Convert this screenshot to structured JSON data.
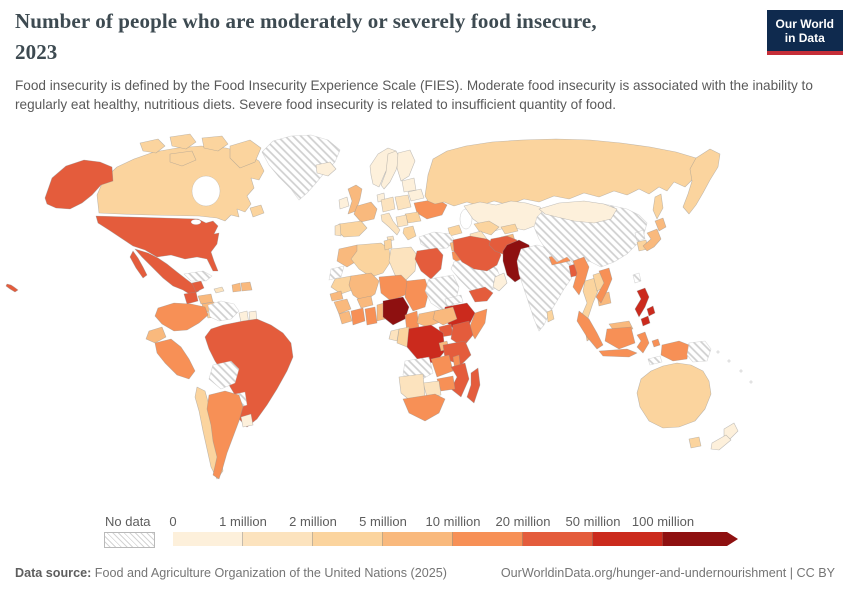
{
  "header": {
    "title_line1": "Number of people who are moderately or severely food insecure,",
    "title_line2": "2023",
    "subtitle": "Food insecurity is defined by the Food Insecurity Experience Scale (FIES). Moderate food insecurity is associated with the inability to regularly eat healthy, nutritious diets. Severe food insecurity is related to insufficient quantity of food."
  },
  "logo": {
    "line1": "Our World",
    "line2": "in Data",
    "background": "#0f2a4e",
    "accent": "#c52e38"
  },
  "legend": {
    "no_data_label": "No data",
    "tick_labels": [
      "0",
      "1 million",
      "2 million",
      "5 million",
      "10 million",
      "20 million",
      "50 million",
      "100 million"
    ]
  },
  "footer": {
    "source_label": "Data source:",
    "source_text": " Food and Agriculture Organization of the United Nations (2025)",
    "link_text": "OurWorldinData.org/hunger-and-undernourishment | CC BY"
  },
  "chart_data": {
    "type": "heatmap",
    "subtype": "choropleth-world-map",
    "title": "Number of people who are moderately or severely food insecure, 2023",
    "unit": "people",
    "bins": [
      {
        "label": "0–1 million",
        "color": "#FDF0DB"
      },
      {
        "label": "1–2 million",
        "color": "#FCE3BE"
      },
      {
        "label": "2–5 million",
        "color": "#FBD49E"
      },
      {
        "label": "5–10 million",
        "color": "#F9B97D"
      },
      {
        "label": "10–20 million",
        "color": "#F79056"
      },
      {
        "label": "20–50 million",
        "color": "#E45C3C"
      },
      {
        "label": "50–100 million",
        "color": "#CB2A1D"
      },
      {
        "label": "100 million+",
        "color": "#8E1010"
      }
    ],
    "no_data": {
      "label": "No data",
      "style": "diagonal-hatch"
    },
    "countries": {
      "United States": "20–50 million",
      "Canada": "2–5 million",
      "Greenland": "No data",
      "Mexico": "20–50 million",
      "Guatemala": "20–50 million",
      "Honduras": "5–10 million",
      "Nicaragua": "5–10 million",
      "Costa Rica": "2–5 million",
      "Panama": "5–10 million",
      "Cuba": "No data",
      "Jamaica": "1–2 million",
      "Haiti": "5–10 million",
      "Dominican Republic": "5–10 million",
      "Colombia": "10–20 million",
      "Venezuela": "No data",
      "Guyana": "0–1 million",
      "Suriname": "0–1 million",
      "Ecuador": "5–10 million",
      "Peru": "10–20 million",
      "Brazil": "20–50 million",
      "Bolivia": "No data",
      "Paraguay": "No data",
      "Chile": "2–5 million",
      "Argentina": "10–20 million",
      "Uruguay": "0–1 million",
      "Iceland": "0–1 million",
      "United Kingdom": "5–10 million",
      "Ireland": "0–1 million",
      "Norway": "0–1 million",
      "Sweden": "0–1 million",
      "Finland": "0–1 million",
      "Denmark": "0–1 million",
      "Germany": "1–2 million",
      "France": "5–10 million",
      "Spain": "2–5 million",
      "Portugal": "1–2 million",
      "Italy": "1–2 million",
      "Poland": "1–2 million",
      "Belarus": "0–1 million",
      "Lithuania": "0–1 million",
      "Ukraine": "10–20 million",
      "Romania": "2–5 million",
      "Serbia": "1–2 million",
      "Greece": "2–5 million",
      "Russia": "2–5 million",
      "Kazakhstan": "0–1 million",
      "Uzbekistan": "2–5 million",
      "Turkmenistan": "1–2 million",
      "Azerbaijan": "2–5 million",
      "Kyrgyzstan": "2–5 million",
      "Tajikistan": "5–10 million",
      "Turkey": "No data",
      "Syria": "5–10 million",
      "Iraq": "10–20 million",
      "Saudi Arabia": "No data",
      "Yemen": "20–50 million",
      "Oman": "0–1 million",
      "Iran": "20–50 million",
      "Afghanistan": "20–50 million",
      "Pakistan": "100 million+",
      "India": "No data",
      "Nepal": "10–20 million",
      "Bangladesh": "20–50 million",
      "Sri Lanka": "2–5 million",
      "China": "No data",
      "Mongolia": "0–1 million",
      "North Korea": "No data",
      "South Korea": "2–5 million",
      "Japan": "5–10 million",
      "Taiwan": "No data",
      "Myanmar": "10–20 million",
      "Thailand": "2–5 million",
      "Laos": "2–5 million",
      "Cambodia": "5–10 million",
      "Vietnam": "10–20 million",
      "Malaysia": "5–10 million",
      "Philippines": "50–100 million",
      "Indonesia": "10–20 million",
      "Papua New Guinea": "No data",
      "Timor-Leste": "No data",
      "Australia": "2–5 million",
      "New Zealand": "0–1 million",
      "Morocco": "5–10 million",
      "Western Sahara": "No data",
      "Algeria": "2–5 million",
      "Tunisia": "2–5 million",
      "Libya": "1–2 million",
      "Egypt": "20–50 million",
      "Mauritania": "2–5 million",
      "Senegal": "5–10 million",
      "Guinea": "5–10 million",
      "Sierra Leone": "5–10 million",
      "Mali": "5–10 million",
      "Burkina Faso": "5–10 million",
      "Cote d'Ivoire": "10–20 million",
      "Ghana": "10–20 million",
      "Benin": "5–10 million",
      "Niger": "10–20 million",
      "Nigeria": "100 million+",
      "Chad": "10–20 million",
      "Cameroon": "10–20 million",
      "Central African Republic": "5–10 million",
      "Sudan": "No data",
      "Eritrea": "No data",
      "Ethiopia": "50–100 million",
      "Somalia": "10–20 million",
      "South Sudan": "5–10 million",
      "Uganda": "20–50 million",
      "Kenya": "20–50 million",
      "Democratic Republic of Congo": "50–100 million",
      "Congo": "2–5 million",
      "Gabon": "1–2 million",
      "Rwanda": "5–10 million",
      "Tanzania": "20–50 million",
      "Angola": "No data",
      "Zambia": "10–20 million",
      "Malawi": "10–20 million",
      "Mozambique": "20–50 million",
      "Zimbabwe": "10–20 million",
      "Botswana": "1–2 million",
      "Namibia": "1–2 million",
      "South Africa": "10–20 million",
      "Madagascar": "20–50 million"
    }
  }
}
